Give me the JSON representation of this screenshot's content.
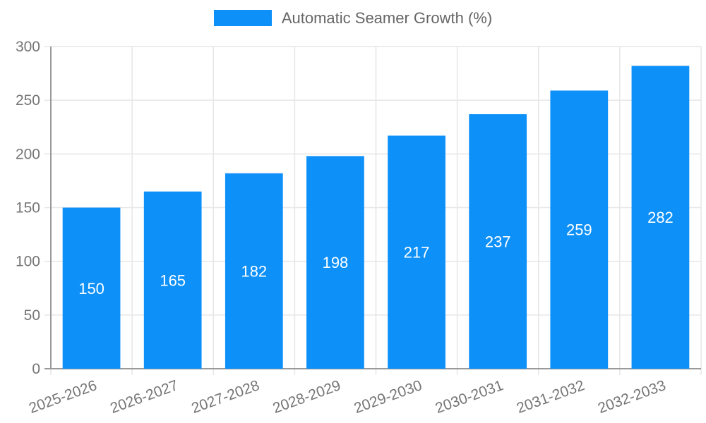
{
  "legend": {
    "label": "Automatic Seamer Growth (%)"
  },
  "chart_data": {
    "type": "bar",
    "title": "Automatic Seamer Growth (%)",
    "categories": [
      "2025-2026",
      "2026-2027",
      "2027-2028",
      "2028-2029",
      "2029-2030",
      "2030-2031",
      "2031-2032",
      "2032-2033"
    ],
    "values": [
      150,
      165,
      182,
      198,
      217,
      237,
      259,
      282
    ],
    "xlabel": "",
    "ylabel": "",
    "ylim": [
      0,
      300
    ],
    "yticks": [
      0,
      50,
      100,
      150,
      200,
      250,
      300
    ],
    "grid": true,
    "legend_position": "top",
    "x_tick_rotation_deg": -20,
    "colors": {
      "bar": "#0e90f9",
      "value_label": "#ffffff",
      "grid": "#e6e6e6",
      "axis": "#999999",
      "tick_label": "#757575",
      "legend_text": "#666666"
    }
  }
}
